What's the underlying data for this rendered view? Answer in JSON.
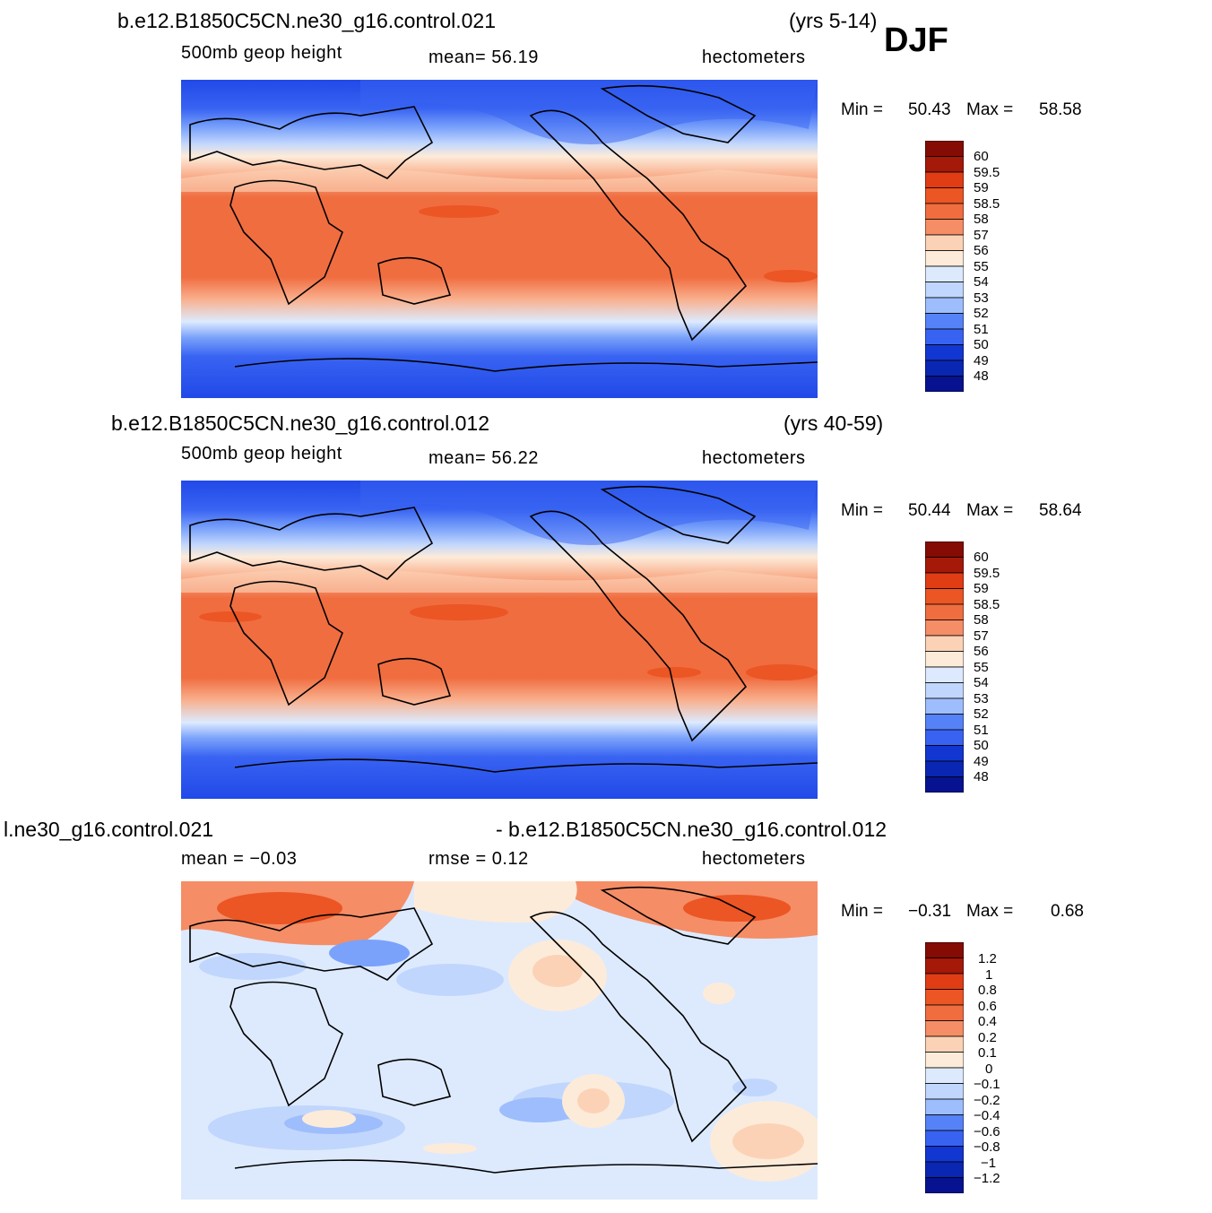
{
  "season": "DJF",
  "palette_full": [
    "#06128f",
    "#0a27b3",
    "#1236d2",
    "#2149e8",
    "#3863f2",
    "#5582f7",
    "#7aa2fb",
    "#9ebdfc",
    "#c1d6fd",
    "#ddeafe",
    "#fdebd9",
    "#fcd2b6",
    "#f9b08e",
    "#f58d66",
    "#f06d40",
    "#ec5524",
    "#e03d15",
    "#c52a0c",
    "#a41908",
    "#850b05"
  ],
  "panels": [
    {
      "case_title": "b.e12.B1850C5CN.ne30_g16.control.021",
      "years": "(yrs 5-14)",
      "left_label": "500mb  geop  height",
      "mid_label": "mean=   56.19",
      "units": "hectometers",
      "minmax": {
        "min_label": "Min =",
        "min_value": "50.43",
        "max_label": "Max =",
        "max_value": "58.58"
      },
      "colorbar_labels": [
        "60",
        "59.5",
        "59",
        "58.5",
        "58",
        "57",
        "56",
        "55",
        "54",
        "53",
        "52",
        "51",
        "50",
        "49",
        "48"
      ]
    },
    {
      "case_title": "b.e12.B1850C5CN.ne30_g16.control.012",
      "years": "(yrs 40-59)",
      "left_label": "500mb  geop  height",
      "mid_label": "mean=   56.22",
      "units": "hectometers",
      "minmax": {
        "min_label": "Min =",
        "min_value": "50.44",
        "max_label": "Max =",
        "max_value": "58.64"
      },
      "colorbar_labels": [
        "60",
        "59.5",
        "59",
        "58.5",
        "58",
        "57",
        "56",
        "55",
        "54",
        "53",
        "52",
        "51",
        "50",
        "49",
        "48"
      ]
    },
    {
      "case_title_left": "l.ne30_g16.control.021",
      "case_title_right": "- b.e12.B1850C5CN.ne30_g16.control.012",
      "left_label": "mean =    −0.03",
      "mid_label": "rmse =     0.12",
      "units": "hectometers",
      "minmax": {
        "min_label": "Min =",
        "min_value": "−0.31",
        "max_label": "Max =",
        "max_value": "0.68"
      },
      "colorbar_labels": [
        "1.2",
        "1",
        "0.8",
        "0.6",
        "0.4",
        "0.2",
        "0.1",
        "0",
        "−0.1",
        "−0.2",
        "−0.4",
        "−0.6",
        "−0.8",
        "−1",
        "−1.2"
      ]
    }
  ]
}
